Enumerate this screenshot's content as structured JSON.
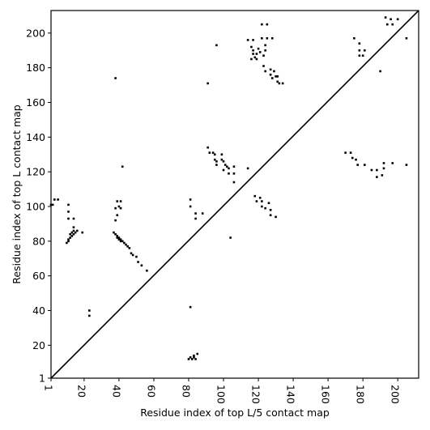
{
  "chart_data": {
    "type": "scatter",
    "title": "",
    "xlabel": "Residue index of top L/5 contact map",
    "ylabel": "Residue index of top L contact map",
    "xlim": [
      1,
      212
    ],
    "ylim": [
      1,
      213
    ],
    "xticks": [
      1,
      20,
      40,
      60,
      80,
      100,
      120,
      140,
      160,
      180,
      200
    ],
    "yticks": [
      1,
      20,
      40,
      60,
      80,
      100,
      120,
      140,
      160,
      180,
      200
    ],
    "grid": false,
    "diagonal": true,
    "marker_color": "#000000",
    "points": [
      [
        1,
        101
      ],
      [
        3,
        104
      ],
      [
        5,
        104
      ],
      [
        2,
        101
      ],
      [
        10,
        79
      ],
      [
        11,
        80
      ],
      [
        11,
        81
      ],
      [
        12,
        82
      ],
      [
        13,
        83
      ],
      [
        14,
        84
      ],
      [
        15,
        85
      ],
      [
        16,
        86
      ],
      [
        13,
        85
      ],
      [
        14,
        86
      ],
      [
        12,
        84
      ],
      [
        11,
        101
      ],
      [
        11,
        97
      ],
      [
        11,
        93
      ],
      [
        14,
        93
      ],
      [
        14,
        88
      ],
      [
        19,
        85
      ],
      [
        23,
        40
      ],
      [
        23,
        37
      ],
      [
        38,
        174
      ],
      [
        38,
        92
      ],
      [
        39,
        95
      ],
      [
        38,
        99
      ],
      [
        40,
        100
      ],
      [
        41,
        99
      ],
      [
        39,
        103
      ],
      [
        41,
        103
      ],
      [
        42,
        123
      ],
      [
        37,
        85
      ],
      [
        38,
        84
      ],
      [
        39,
        83
      ],
      [
        40,
        82
      ],
      [
        41,
        81
      ],
      [
        42,
        80
      ],
      [
        43,
        79
      ],
      [
        44,
        78
      ],
      [
        45,
        77
      ],
      [
        46,
        76
      ],
      [
        47,
        73
      ],
      [
        48,
        72
      ],
      [
        50,
        71
      ],
      [
        51,
        68
      ],
      [
        53,
        66
      ],
      [
        56,
        63
      ],
      [
        39,
        82
      ],
      [
        40,
        81
      ],
      [
        41,
        80
      ],
      [
        81,
        42
      ],
      [
        80,
        12
      ],
      [
        81,
        13
      ],
      [
        82,
        12
      ],
      [
        83,
        14
      ],
      [
        84,
        12
      ],
      [
        85,
        15
      ],
      [
        83,
        13
      ],
      [
        81,
        104
      ],
      [
        81,
        100
      ],
      [
        84,
        96
      ],
      [
        84,
        93
      ],
      [
        88,
        96
      ],
      [
        91,
        171
      ],
      [
        91,
        134
      ],
      [
        92,
        131
      ],
      [
        94,
        131
      ],
      [
        95,
        130
      ],
      [
        95,
        127
      ],
      [
        96,
        126
      ],
      [
        96,
        124
      ],
      [
        99,
        130
      ],
      [
        99,
        127
      ],
      [
        100,
        126
      ],
      [
        101,
        124
      ],
      [
        100,
        121
      ],
      [
        102,
        123
      ],
      [
        103,
        122
      ],
      [
        103,
        119
      ],
      [
        106,
        123
      ],
      [
        106,
        119
      ],
      [
        106,
        114
      ],
      [
        104,
        82
      ],
      [
        114,
        122
      ],
      [
        96,
        193
      ],
      [
        114,
        196
      ],
      [
        117,
        196
      ],
      [
        116,
        192
      ],
      [
        117,
        190
      ],
      [
        118,
        186
      ],
      [
        117,
        188
      ],
      [
        116,
        185
      ],
      [
        119,
        185
      ],
      [
        119,
        188
      ],
      [
        120,
        191
      ],
      [
        121,
        189
      ],
      [
        122,
        197
      ],
      [
        122,
        205
      ],
      [
        124,
        193
      ],
      [
        125,
        197
      ],
      [
        125,
        205
      ],
      [
        124,
        190
      ],
      [
        123,
        187
      ],
      [
        123,
        181
      ],
      [
        124,
        178
      ],
      [
        127,
        179
      ],
      [
        127,
        176
      ],
      [
        128,
        174
      ],
      [
        128,
        197
      ],
      [
        129,
        178
      ],
      [
        130,
        175
      ],
      [
        131,
        172
      ],
      [
        132,
        171
      ],
      [
        131,
        175
      ],
      [
        134,
        171
      ],
      [
        118,
        106
      ],
      [
        119,
        103
      ],
      [
        121,
        105
      ],
      [
        122,
        103
      ],
      [
        122,
        100
      ],
      [
        124,
        99
      ],
      [
        126,
        102
      ],
      [
        127,
        98
      ],
      [
        127,
        95
      ],
      [
        130,
        94
      ],
      [
        170,
        131
      ],
      [
        173,
        131
      ],
      [
        174,
        128
      ],
      [
        176,
        127
      ],
      [
        177,
        124
      ],
      [
        175,
        197
      ],
      [
        178,
        194
      ],
      [
        178,
        190
      ],
      [
        178,
        187
      ],
      [
        180,
        187
      ],
      [
        181,
        190
      ],
      [
        181,
        124
      ],
      [
        185,
        121
      ],
      [
        188,
        121
      ],
      [
        188,
        117
      ],
      [
        190,
        178
      ],
      [
        191,
        118
      ],
      [
        192,
        122
      ],
      [
        192,
        125
      ],
      [
        193,
        209
      ],
      [
        194,
        205
      ],
      [
        196,
        208
      ],
      [
        197,
        205
      ],
      [
        197,
        125
      ],
      [
        200,
        208
      ],
      [
        205,
        197
      ],
      [
        205,
        124
      ]
    ]
  }
}
